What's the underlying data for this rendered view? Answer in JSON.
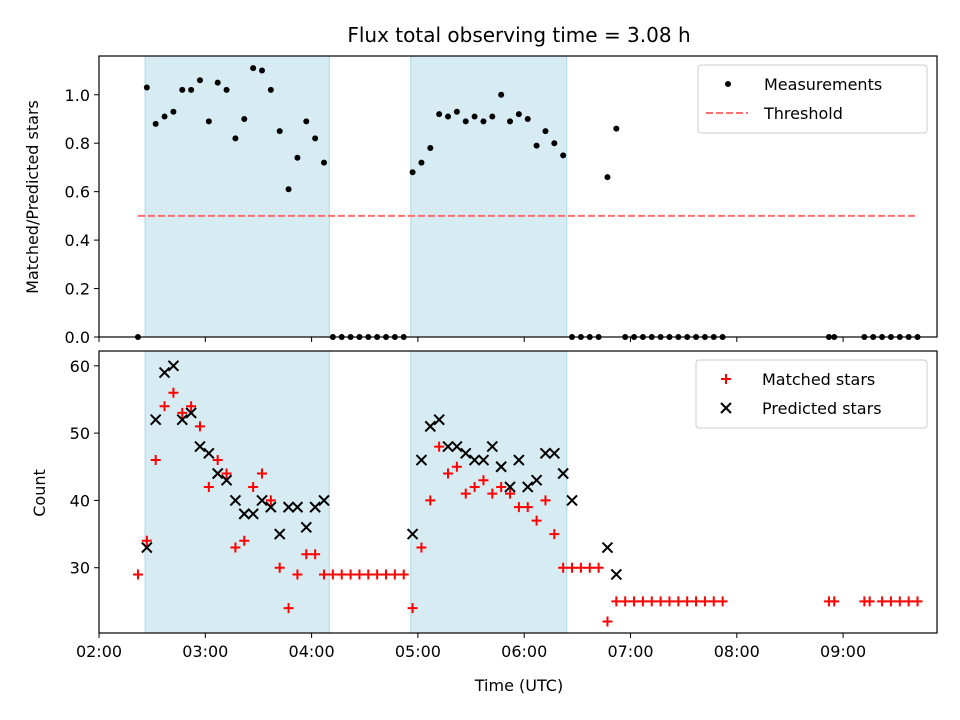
{
  "chart_data": [
    {
      "type": "scatter",
      "title": "Flux total observing time = 3.08 h",
      "xlabel": "",
      "ylabel": "Matched/Predicted stars",
      "xlim": [
        "02:00",
        "09:53"
      ],
      "ylim": [
        0,
        1.16
      ],
      "yticks": [
        0.0,
        0.2,
        0.4,
        0.6,
        0.8,
        1.0
      ],
      "ytick_labels": [
        "0.0",
        "0.2",
        "0.4",
        "0.6",
        "0.8",
        "1.0"
      ],
      "shaded_intervals": [
        [
          "02:26",
          "04:10"
        ],
        [
          "04:56",
          "06:24"
        ]
      ],
      "shade_color": "#add8e6",
      "legend": {
        "position": "upper right",
        "entries": [
          "Measurements",
          "Threshold"
        ]
      },
      "series": [
        {
          "name": "Measurements",
          "marker": "dot",
          "color": "#000000",
          "points": [
            [
              "02:22",
              0.0
            ],
            [
              "02:27",
              1.03
            ],
            [
              "02:32",
              0.88
            ],
            [
              "02:37",
              0.91
            ],
            [
              "02:42",
              0.93
            ],
            [
              "02:47",
              1.02
            ],
            [
              "02:52",
              1.02
            ],
            [
              "02:57",
              1.06
            ],
            [
              "03:02",
              0.89
            ],
            [
              "03:07",
              1.05
            ],
            [
              "03:12",
              1.02
            ],
            [
              "03:17",
              0.82
            ],
            [
              "03:22",
              0.9
            ],
            [
              "03:27",
              1.11
            ],
            [
              "03:32",
              1.1
            ],
            [
              "03:37",
              1.02
            ],
            [
              "03:42",
              0.85
            ],
            [
              "03:47",
              0.61
            ],
            [
              "03:52",
              0.74
            ],
            [
              "03:57",
              0.89
            ],
            [
              "04:02",
              0.82
            ],
            [
              "04:07",
              0.72
            ],
            [
              "04:12",
              0.0
            ],
            [
              "04:17",
              0.0
            ],
            [
              "04:22",
              0.0
            ],
            [
              "04:27",
              0.0
            ],
            [
              "04:32",
              0.0
            ],
            [
              "04:37",
              0.0
            ],
            [
              "04:42",
              0.0
            ],
            [
              "04:47",
              0.0
            ],
            [
              "04:52",
              0.0
            ],
            [
              "04:57",
              0.68
            ],
            [
              "05:02",
              0.72
            ],
            [
              "05:07",
              0.78
            ],
            [
              "05:12",
              0.92
            ],
            [
              "05:17",
              0.91
            ],
            [
              "05:22",
              0.93
            ],
            [
              "05:27",
              0.89
            ],
            [
              "05:32",
              0.91
            ],
            [
              "05:37",
              0.89
            ],
            [
              "05:42",
              0.91
            ],
            [
              "05:47",
              1.0
            ],
            [
              "05:52",
              0.89
            ],
            [
              "05:57",
              0.92
            ],
            [
              "06:02",
              0.9
            ],
            [
              "06:07",
              0.79
            ],
            [
              "06:12",
              0.85
            ],
            [
              "06:17",
              0.8
            ],
            [
              "06:22",
              0.75
            ],
            [
              "06:27",
              0.0
            ],
            [
              "06:32",
              0.0
            ],
            [
              "06:37",
              0.0
            ],
            [
              "06:42",
              0.0
            ],
            [
              "06:47",
              0.66
            ],
            [
              "06:52",
              0.86
            ],
            [
              "06:57",
              0.0
            ],
            [
              "07:02",
              0.0
            ],
            [
              "07:07",
              0.0
            ],
            [
              "07:12",
              0.0
            ],
            [
              "07:17",
              0.0
            ],
            [
              "07:22",
              0.0
            ],
            [
              "07:27",
              0.0
            ],
            [
              "07:32",
              0.0
            ],
            [
              "07:37",
              0.0
            ],
            [
              "07:42",
              0.0
            ],
            [
              "07:47",
              0.0
            ],
            [
              "07:52",
              0.0
            ],
            [
              "08:52",
              0.0
            ],
            [
              "08:55",
              0.0
            ],
            [
              "09:12",
              0.0
            ],
            [
              "09:17",
              0.0
            ],
            [
              "09:22",
              0.0
            ],
            [
              "09:27",
              0.0
            ],
            [
              "09:32",
              0.0
            ],
            [
              "09:37",
              0.0
            ],
            [
              "09:42",
              0.0
            ]
          ]
        },
        {
          "name": "Threshold",
          "type": "line",
          "style": "dashed",
          "color": "#ff6f6f",
          "points": [
            [
              "02:22",
              0.5
            ],
            [
              "09:42",
              0.5
            ]
          ]
        }
      ]
    },
    {
      "type": "scatter",
      "title": "",
      "xlabel": "Time (UTC)",
      "ylabel": "Count",
      "xlim": [
        "02:00",
        "09:53"
      ],
      "ylim": [
        20.3,
        62.2
      ],
      "yticks": [
        30,
        40,
        50,
        60
      ],
      "ytick_labels": [
        "30",
        "40",
        "50",
        "60"
      ],
      "xticks": [
        "02:00",
        "03:00",
        "04:00",
        "05:00",
        "06:00",
        "07:00",
        "08:00",
        "09:00"
      ],
      "xtick_labels": [
        "02:00",
        "03:00",
        "04:00",
        "05:00",
        "06:00",
        "07:00",
        "08:00",
        "09:00"
      ],
      "shaded_intervals": [
        [
          "02:26",
          "04:10"
        ],
        [
          "04:56",
          "06:24"
        ]
      ],
      "shade_color": "#add8e6",
      "legend": {
        "position": "upper right",
        "entries": [
          "Matched stars",
          "Predicted stars"
        ]
      },
      "series": [
        {
          "name": "Matched stars",
          "marker": "+",
          "color": "#ff0000",
          "points": [
            [
              "02:22",
              29
            ],
            [
              "02:27",
              34
            ],
            [
              "02:32",
              46
            ],
            [
              "02:37",
              54
            ],
            [
              "02:42",
              56
            ],
            [
              "02:47",
              53
            ],
            [
              "02:52",
              54
            ],
            [
              "02:57",
              51
            ],
            [
              "03:02",
              42
            ],
            [
              "03:07",
              46
            ],
            [
              "03:12",
              44
            ],
            [
              "03:17",
              33
            ],
            [
              "03:22",
              34
            ],
            [
              "03:27",
              42
            ],
            [
              "03:32",
              44
            ],
            [
              "03:37",
              40
            ],
            [
              "03:42",
              30
            ],
            [
              "03:47",
              24
            ],
            [
              "03:52",
              29
            ],
            [
              "03:57",
              32
            ],
            [
              "04:02",
              32
            ],
            [
              "04:07",
              29
            ],
            [
              "04:12",
              29
            ],
            [
              "04:17",
              29
            ],
            [
              "04:22",
              29
            ],
            [
              "04:27",
              29
            ],
            [
              "04:32",
              29
            ],
            [
              "04:37",
              29
            ],
            [
              "04:42",
              29
            ],
            [
              "04:47",
              29
            ],
            [
              "04:52",
              29
            ],
            [
              "04:57",
              24
            ],
            [
              "05:02",
              33
            ],
            [
              "05:07",
              40
            ],
            [
              "05:12",
              48
            ],
            [
              "05:17",
              44
            ],
            [
              "05:22",
              45
            ],
            [
              "05:27",
              41
            ],
            [
              "05:32",
              42
            ],
            [
              "05:37",
              43
            ],
            [
              "05:42",
              41
            ],
            [
              "05:47",
              42
            ],
            [
              "05:52",
              41
            ],
            [
              "05:57",
              39
            ],
            [
              "06:02",
              39
            ],
            [
              "06:07",
              37
            ],
            [
              "06:12",
              40
            ],
            [
              "06:17",
              35
            ],
            [
              "06:22",
              30
            ],
            [
              "06:27",
              30
            ],
            [
              "06:32",
              30
            ],
            [
              "06:37",
              30
            ],
            [
              "06:42",
              30
            ],
            [
              "06:47",
              22
            ],
            [
              "06:52",
              25
            ],
            [
              "06:57",
              25
            ],
            [
              "07:02",
              25
            ],
            [
              "07:07",
              25
            ],
            [
              "07:12",
              25
            ],
            [
              "07:17",
              25
            ],
            [
              "07:22",
              25
            ],
            [
              "07:27",
              25
            ],
            [
              "07:32",
              25
            ],
            [
              "07:37",
              25
            ],
            [
              "07:42",
              25
            ],
            [
              "07:47",
              25
            ],
            [
              "07:52",
              25
            ],
            [
              "08:52",
              25
            ],
            [
              "08:55",
              25
            ],
            [
              "09:12",
              25
            ],
            [
              "09:15",
              25
            ],
            [
              "09:22",
              25
            ],
            [
              "09:27",
              25
            ],
            [
              "09:32",
              25
            ],
            [
              "09:37",
              25
            ],
            [
              "09:42",
              25
            ]
          ]
        },
        {
          "name": "Predicted stars",
          "marker": "x",
          "color": "#000000",
          "points": [
            [
              "02:27",
              33
            ],
            [
              "02:32",
              52
            ],
            [
              "02:37",
              59
            ],
            [
              "02:42",
              60
            ],
            [
              "02:47",
              52
            ],
            [
              "02:52",
              53
            ],
            [
              "02:57",
              48
            ],
            [
              "03:02",
              47
            ],
            [
              "03:07",
              44
            ],
            [
              "03:12",
              43
            ],
            [
              "03:17",
              40
            ],
            [
              "03:22",
              38
            ],
            [
              "03:27",
              38
            ],
            [
              "03:32",
              40
            ],
            [
              "03:37",
              39
            ],
            [
              "03:42",
              35
            ],
            [
              "03:47",
              39
            ],
            [
              "03:52",
              39
            ],
            [
              "03:57",
              36
            ],
            [
              "04:02",
              39
            ],
            [
              "04:07",
              40
            ],
            [
              "04:57",
              35
            ],
            [
              "05:02",
              46
            ],
            [
              "05:07",
              51
            ],
            [
              "05:12",
              52
            ],
            [
              "05:17",
              48
            ],
            [
              "05:22",
              48
            ],
            [
              "05:27",
              47
            ],
            [
              "05:32",
              46
            ],
            [
              "05:37",
              46
            ],
            [
              "05:42",
              48
            ],
            [
              "05:47",
              45
            ],
            [
              "05:52",
              42
            ],
            [
              "05:57",
              46
            ],
            [
              "06:02",
              42
            ],
            [
              "06:07",
              43
            ],
            [
              "06:12",
              47
            ],
            [
              "06:17",
              47
            ],
            [
              "06:22",
              44
            ],
            [
              "06:27",
              40
            ],
            [
              "06:47",
              33
            ],
            [
              "06:52",
              29
            ]
          ]
        }
      ]
    }
  ]
}
